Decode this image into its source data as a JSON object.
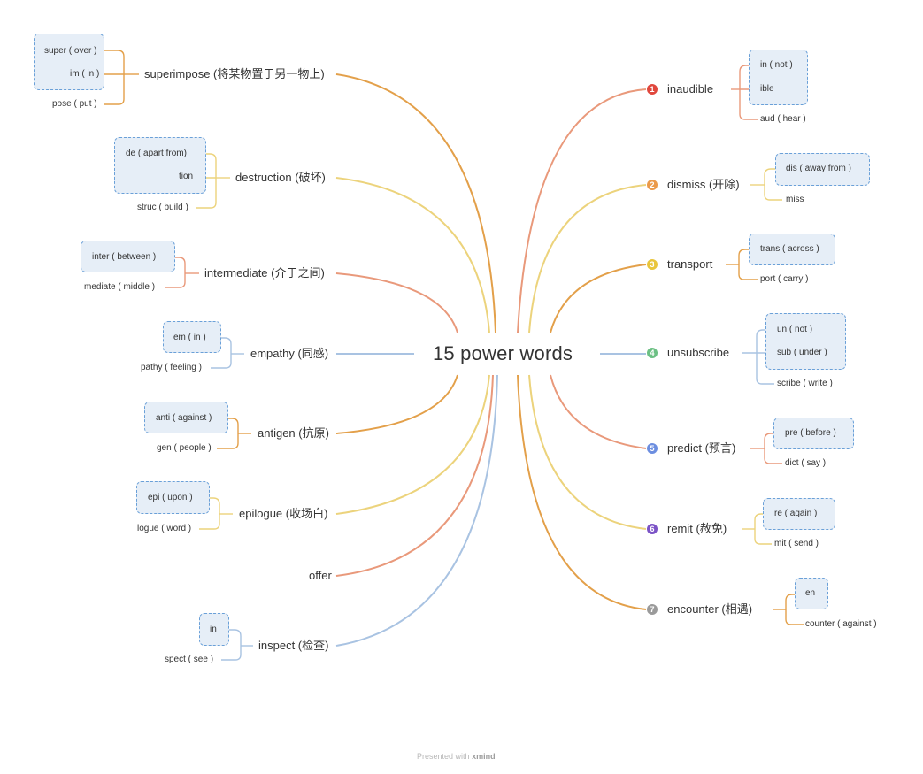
{
  "central": {
    "title": "15 power words"
  },
  "colors": {
    "orange": "#e3a04a",
    "yellow": "#ecd37c",
    "salmon": "#e9997b",
    "blue": "#a9c3e2",
    "group_border": "#6aa0d8",
    "group_fill": "#e6eef7"
  },
  "left_topics": [
    {
      "label": "superimpose (将某物置于另一物上)",
      "color": "orange",
      "parts": [
        "super ( over )",
        "im ( in )",
        "pose ( put )"
      ]
    },
    {
      "label": "destruction (破坏)",
      "color": "yellow",
      "parts": [
        "de ( apart from)",
        "tion",
        "struc ( build )"
      ]
    },
    {
      "label": "intermediate (介于之间)",
      "color": "salmon",
      "parts": [
        "inter ( between )",
        "mediate ( middle )"
      ]
    },
    {
      "label": "empathy (同感)",
      "color": "blue",
      "parts": [
        "em ( in )",
        "pathy ( feeling )"
      ]
    },
    {
      "label": "antigen (抗原)",
      "color": "orange",
      "parts": [
        "anti ( against )",
        "gen ( people )"
      ]
    },
    {
      "label": "epilogue (收场白)",
      "color": "yellow",
      "parts": [
        "epi ( upon )",
        "logue ( word )"
      ]
    },
    {
      "label": "offer",
      "color": "salmon",
      "parts": []
    },
    {
      "label": "inspect (检查)",
      "color": "blue",
      "parts": [
        "in",
        "spect ( see )"
      ]
    }
  ],
  "right_topics": [
    {
      "marker": "1",
      "marker_color": "#e0473d",
      "label": "inaudible",
      "color": "salmon",
      "parts": [
        "in ( not )",
        "ible",
        "aud ( hear )"
      ]
    },
    {
      "marker": "2",
      "marker_color": "#eb9a4a",
      "label": "dismiss (开除)",
      "color": "yellow",
      "parts": [
        "dis ( away from )",
        "miss"
      ]
    },
    {
      "marker": "3",
      "marker_color": "#e9c53c",
      "label": "transport",
      "color": "orange",
      "parts": [
        "trans ( across )",
        "port ( carry )"
      ]
    },
    {
      "marker": "4",
      "marker_color": "#6cc084",
      "label": "unsubscribe",
      "color": "blue",
      "parts": [
        "un ( not )",
        "sub ( under )",
        "scribe ( write )"
      ]
    },
    {
      "marker": "5",
      "marker_color": "#6c8ee0",
      "label": "predict (预言)",
      "color": "salmon",
      "parts": [
        "pre ( before )",
        "dict ( say )"
      ]
    },
    {
      "marker": "6",
      "marker_color": "#7b53c6",
      "label": "remit (赦免)",
      "color": "yellow",
      "parts": [
        "re ( again )",
        "mit ( send )"
      ]
    },
    {
      "marker": "7",
      "marker_color": "#9a9a9a",
      "label": "encounter  (相遇)",
      "color": "orange",
      "parts": [
        "en",
        "counter ( against )"
      ]
    }
  ],
  "footer": {
    "prefix": "Presented with",
    "brand": "xmind"
  }
}
